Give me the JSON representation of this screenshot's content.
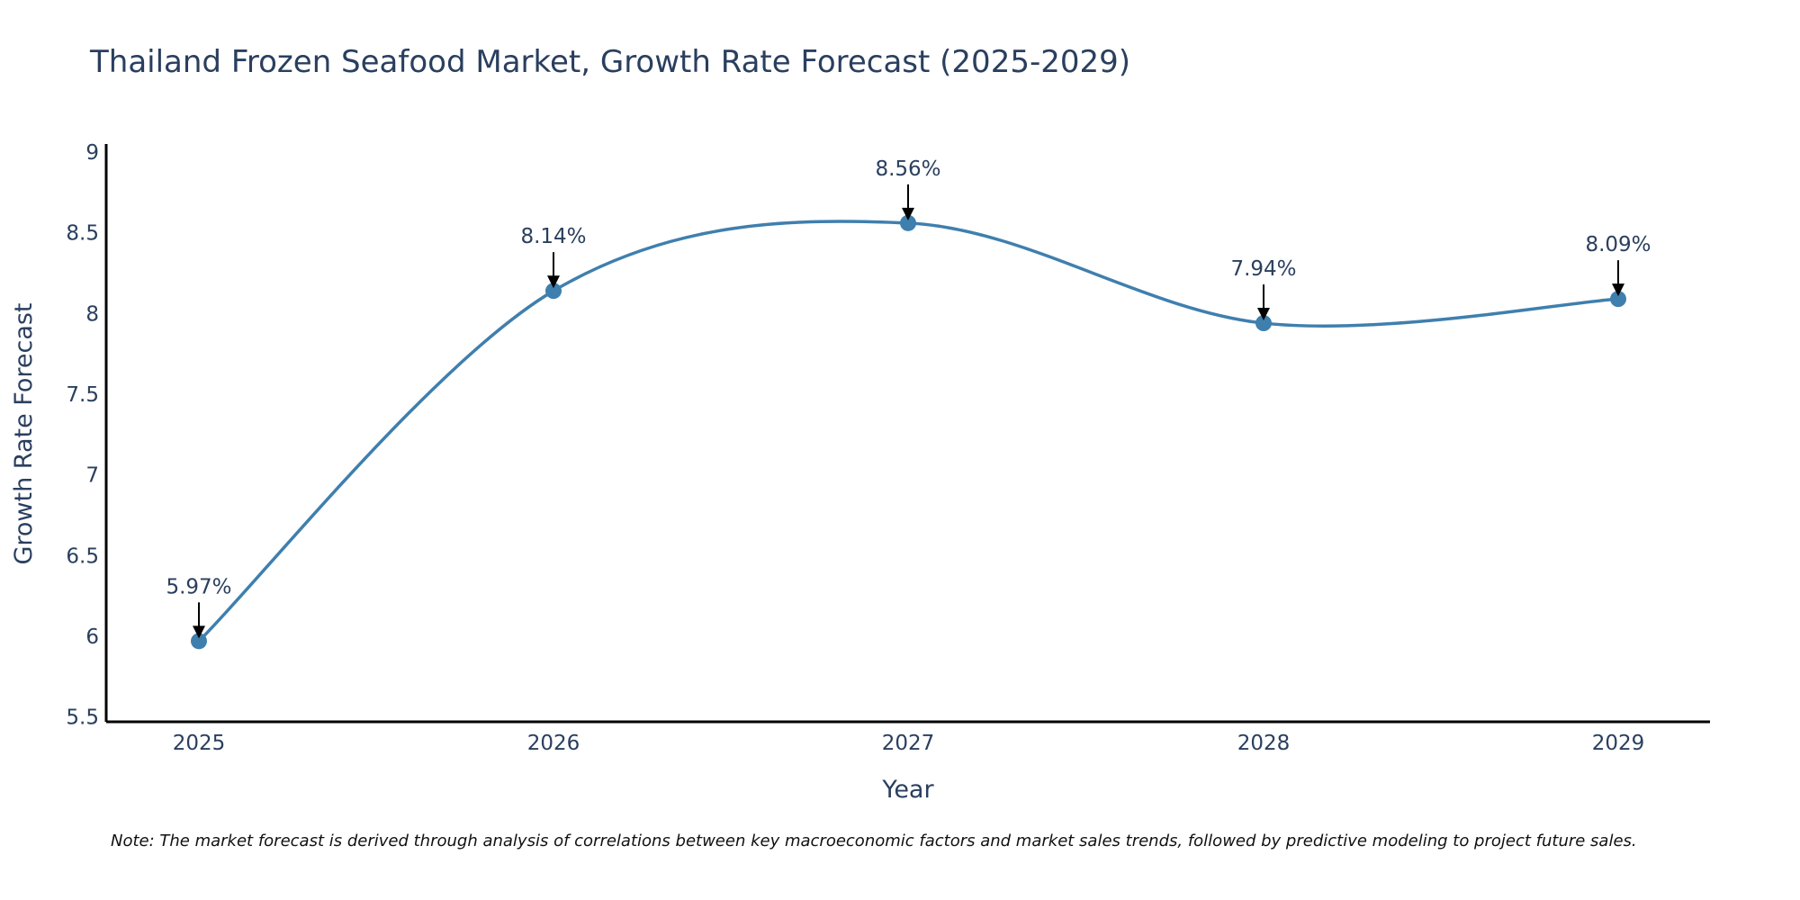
{
  "chart_data": {
    "type": "line",
    "title": "Thailand Frozen Seafood Market, Growth Rate Forecast (2025-2029)",
    "xlabel": "Year",
    "ylabel": "Growth Rate Forecast",
    "categories": [
      "2025",
      "2026",
      "2027",
      "2028",
      "2029"
    ],
    "values": [
      5.97,
      8.14,
      8.56,
      7.94,
      8.09
    ],
    "data_labels": [
      "5.97%",
      "8.14%",
      "8.56%",
      "7.94%",
      "8.09%"
    ],
    "y_ticks": [
      "5.5",
      "6",
      "6.5",
      "7",
      "7.5",
      "8",
      "8.5",
      "9"
    ],
    "ylim": [
      5.47,
      9.05
    ],
    "grid": false,
    "line_shape": "spline",
    "line_color": "#3f7fae",
    "marker_color": "#3f7fae",
    "note": "Note: The market forecast is derived through analysis of correlations between key macroeconomic factors and market sales trends, followed by predictive modeling to project future sales."
  }
}
